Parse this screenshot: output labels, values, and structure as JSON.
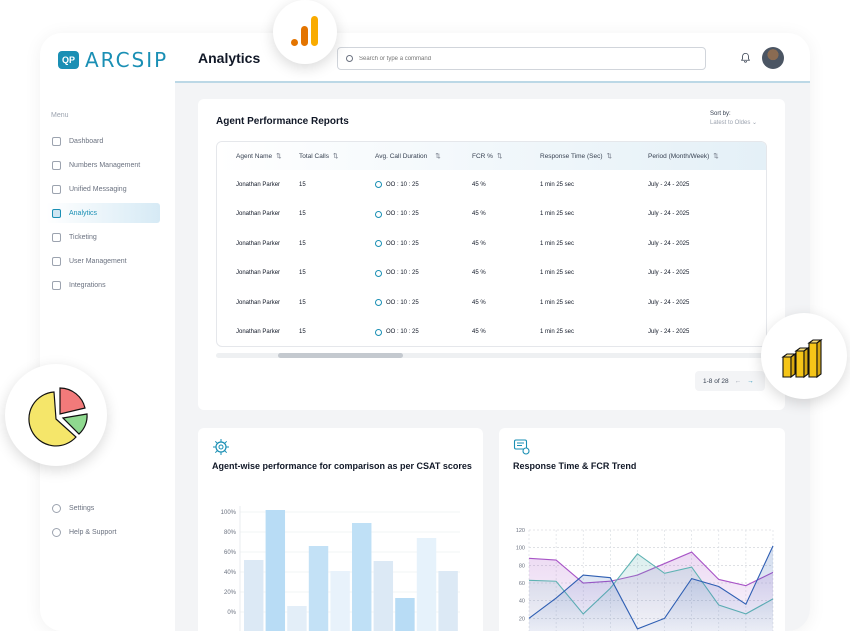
{
  "brand": {
    "logo_mark": "QP",
    "name": "ARCSIP",
    "color": "#1a8fb4"
  },
  "sidebar": {
    "menu_label": "Menu",
    "items": [
      {
        "label": "Dashboard",
        "icon": "dashboard-icon",
        "active": false
      },
      {
        "label": "Numbers Management",
        "icon": "numbers-icon",
        "active": false
      },
      {
        "label": "Unified Messaging",
        "icon": "message-icon",
        "active": false
      },
      {
        "label": "Analytics",
        "icon": "analytics-icon",
        "active": true
      },
      {
        "label": "Ticketing",
        "icon": "ticket-icon",
        "active": false
      },
      {
        "label": "User Management",
        "icon": "users-icon",
        "active": false
      },
      {
        "label": "Integrations",
        "icon": "integrations-icon",
        "active": false
      }
    ],
    "bottom_items": [
      {
        "label": "Settings",
        "icon": "gear-icon"
      },
      {
        "label": "Help & Support",
        "icon": "headset-icon"
      }
    ]
  },
  "header": {
    "title": "Analytics",
    "search_placeholder": "Search or type a command"
  },
  "report": {
    "title": "Agent Performance Reports",
    "sort_label": "Sort by:",
    "sort_value": "Latest to Oldes",
    "columns": [
      "Agent Name",
      "Total Calls",
      "Avg. Call Duration",
      "FCR %",
      "Response Time (Sec)",
      "Period (Month/Week)"
    ],
    "rows": [
      [
        "Jonathan Parker",
        "15",
        "OO : 10 : 25",
        "45 %",
        "1 min 25 sec",
        "July - 24 - 2025"
      ],
      [
        "Jonathan Parker",
        "15",
        "OO : 10 : 25",
        "45 %",
        "1 min 25 sec",
        "July - 24 - 2025"
      ],
      [
        "Jonathan Parker",
        "15",
        "OO : 10 : 25",
        "45 %",
        "1 min 25 sec",
        "July - 24 - 2025"
      ],
      [
        "Jonathan Parker",
        "15",
        "OO : 10 : 25",
        "45 %",
        "1 min 25 sec",
        "July - 24 - 2025"
      ],
      [
        "Jonathan Parker",
        "15",
        "OO : 10 : 25",
        "45 %",
        "1 min 25 sec",
        "July - 24 - 2025"
      ],
      [
        "Jonathan Parker",
        "15",
        "OO : 10 : 25",
        "45 %",
        "1 min 25 sec",
        "July - 24 - 2025"
      ]
    ],
    "pagination": "1-8 of 28"
  },
  "chart_data": [
    {
      "type": "bar",
      "title": "Agent-wise performance for comparison as per CSAT scores",
      "ylim": [
        0,
        100
      ],
      "yticks": [
        "100%",
        "80%",
        "60%",
        "40%",
        "20%",
        "0%"
      ],
      "values": [
        52,
        102,
        6,
        66,
        41,
        89,
        51,
        14,
        74,
        41
      ],
      "colors": [
        "#dce9f5",
        "#b8dcf5",
        "#e3eef8",
        "#c3e1f6",
        "#e8f2fb",
        "#bfe0f6",
        "#dce9f5",
        "#b8dcf5",
        "#e6f2fb",
        "#dce9f5"
      ]
    },
    {
      "type": "area",
      "title": "Response Time & FCR Trend",
      "ylim": [
        0,
        120
      ],
      "yticks": [
        "120",
        "100",
        "80",
        "60",
        "40",
        "20"
      ],
      "series": [
        {
          "values": [
            88,
            86,
            60,
            62,
            69,
            82,
            95,
            64,
            57,
            72
          ],
          "color": "#a855c7"
        },
        {
          "values": [
            63,
            62,
            25,
            54,
            93,
            71,
            78,
            35,
            25,
            42
          ],
          "color": "#5fb3b3"
        },
        {
          "values": [
            20,
            43,
            69,
            66,
            8,
            20,
            65,
            56,
            36,
            102
          ],
          "color": "#2f5fb3"
        }
      ]
    }
  ],
  "decor": {
    "google_analytics_colors": [
      "#f9ab00",
      "#e37400"
    ],
    "pie_colors": [
      "#f5e66a",
      "#f27a7a",
      "#8fd98f"
    ],
    "bars3d_color": "#f5c518"
  }
}
